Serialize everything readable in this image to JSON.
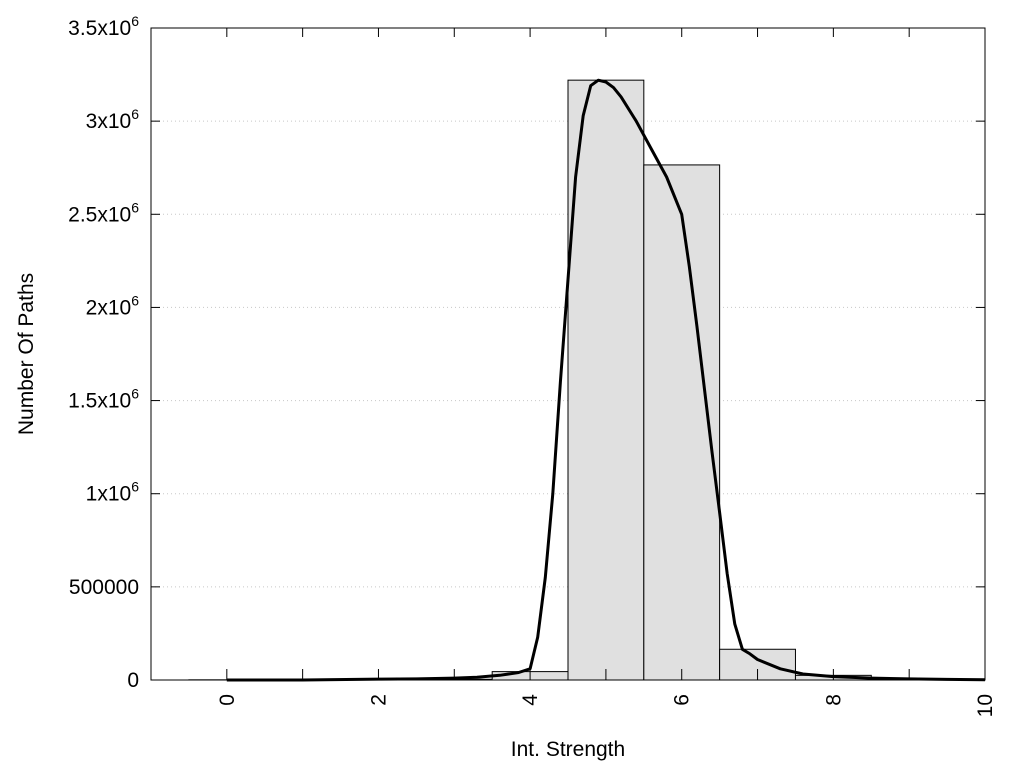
{
  "chart_data": {
    "type": "bar",
    "xlabel": "Int. Strength",
    "ylabel": "Number Of Paths",
    "xlim": [
      -1,
      10
    ],
    "ylim": [
      0,
      3500000
    ],
    "grid": "horizontal dotted",
    "x_ticks": [
      0,
      2,
      4,
      6,
      8,
      10
    ],
    "y_ticks": [
      {
        "value": 0,
        "mantissa": "0",
        "exp": ""
      },
      {
        "value": 500000,
        "mantissa": "500000",
        "exp": ""
      },
      {
        "value": 1000000,
        "mantissa": "1x10",
        "exp": "6"
      },
      {
        "value": 1500000,
        "mantissa": "1.5x10",
        "exp": "6"
      },
      {
        "value": 2000000,
        "mantissa": "2x10",
        "exp": "6"
      },
      {
        "value": 2500000,
        "mantissa": "2.5x10",
        "exp": "6"
      },
      {
        "value": 3000000,
        "mantissa": "3x10",
        "exp": "6"
      },
      {
        "value": 3500000,
        "mantissa": "3.5x10",
        "exp": "6"
      }
    ],
    "bars": {
      "x": [
        0,
        1,
        2,
        3,
        4,
        5,
        6,
        7,
        8,
        9,
        10
      ],
      "values": [
        1000,
        1000,
        2000,
        4000,
        45000,
        3220000,
        2765000,
        165000,
        25000,
        8000,
        3000
      ]
    },
    "curve": {
      "x": [
        0,
        1,
        2,
        2.5,
        3,
        3.3,
        3.6,
        3.85,
        4,
        4.1,
        4.2,
        4.3,
        4.4,
        4.5,
        4.6,
        4.7,
        4.8,
        4.9,
        5.0,
        5.1,
        5.2,
        5.4,
        5.6,
        5.8,
        6.0,
        6.1,
        6.2,
        6.3,
        6.4,
        6.5,
        6.6,
        6.7,
        6.8,
        6.9,
        7.0,
        7.3,
        7.6,
        8.0,
        8.5,
        9,
        9.5,
        10
      ],
      "y": [
        0,
        0,
        5000,
        6000,
        10000,
        15000,
        25000,
        40000,
        60000,
        230000,
        550000,
        1000000,
        1600000,
        2150000,
        2700000,
        3030000,
        3190000,
        3220000,
        3210000,
        3180000,
        3130000,
        3000000,
        2850000,
        2700000,
        2500000,
        2220000,
        1900000,
        1560000,
        1220000,
        900000,
        570000,
        300000,
        165000,
        140000,
        110000,
        60000,
        32000,
        18000,
        10000,
        6000,
        3000,
        1000
      ]
    }
  }
}
